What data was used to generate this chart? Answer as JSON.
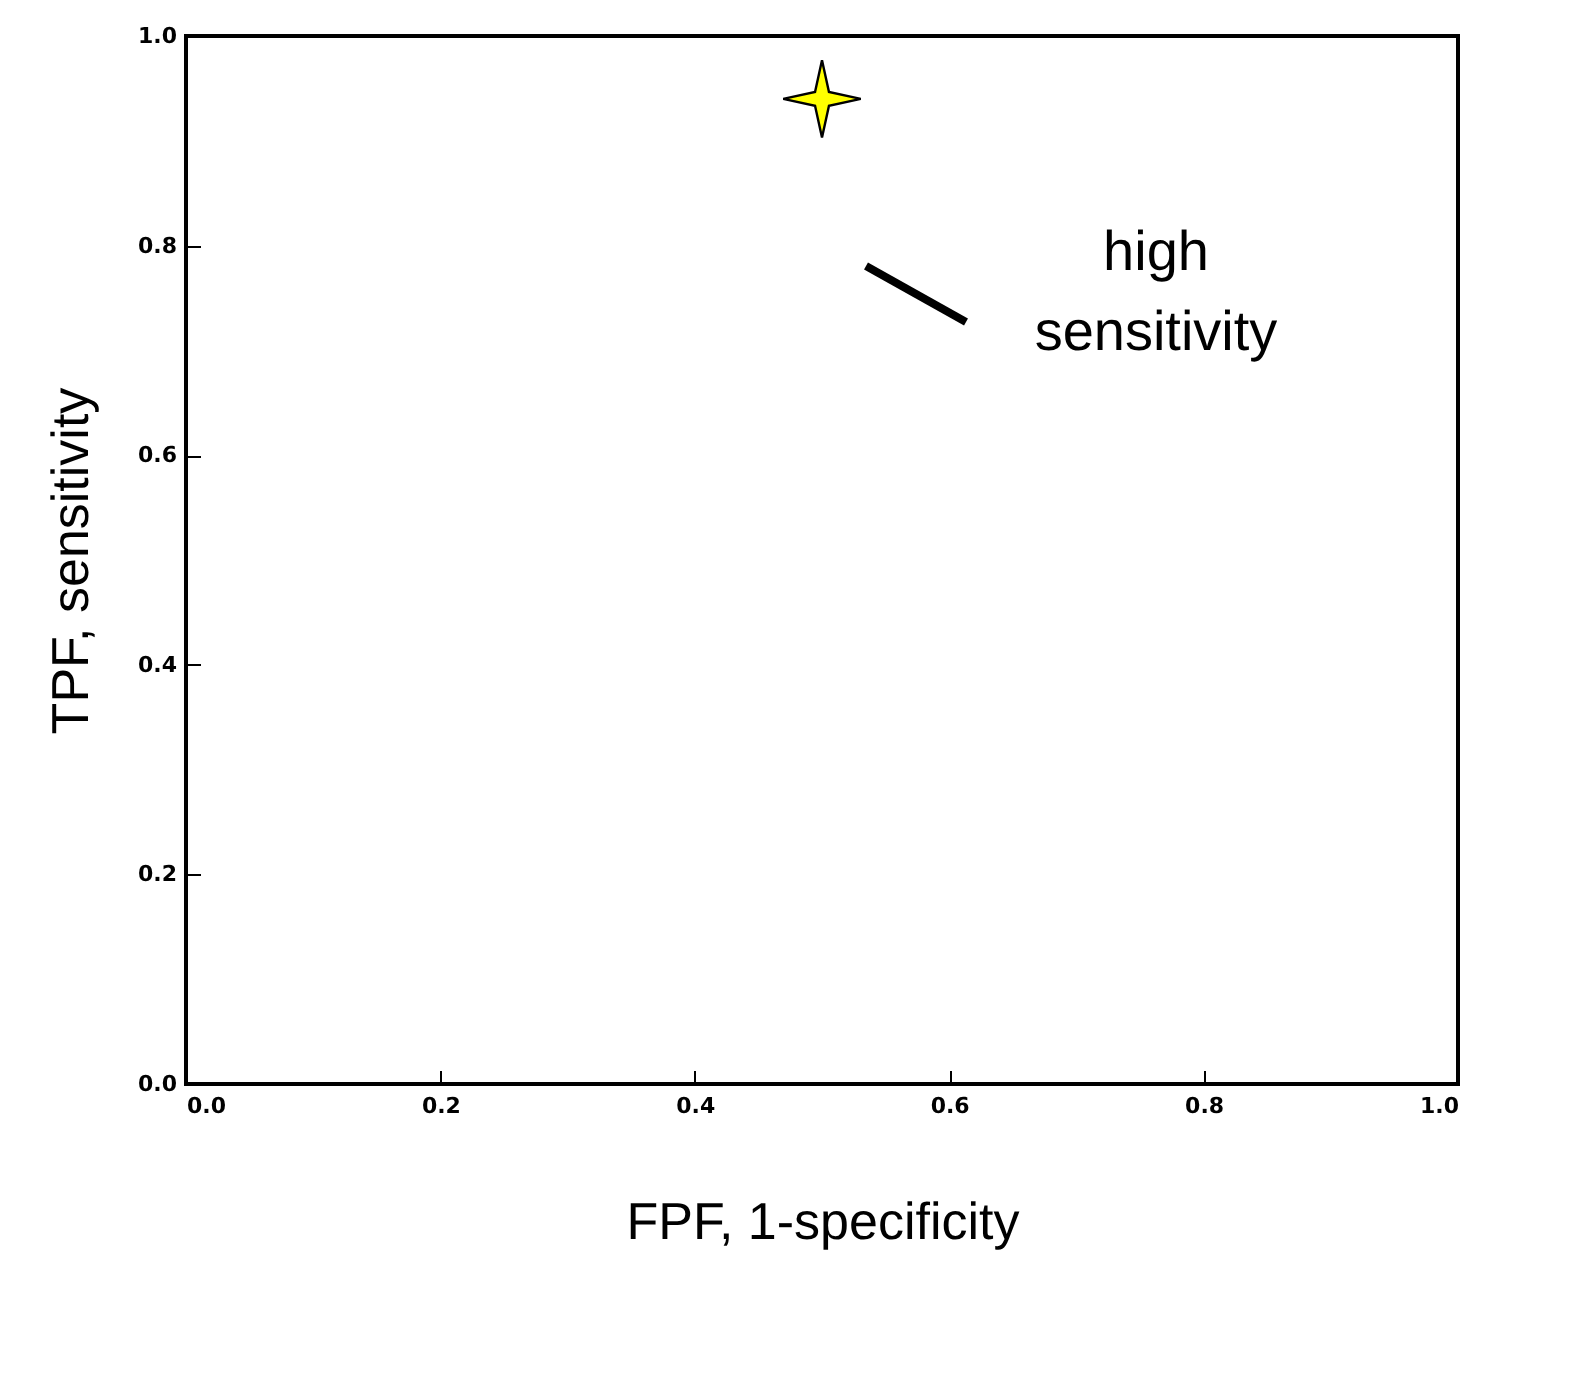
{
  "chart_data": {
    "type": "scatter",
    "xlabel": "FPF, 1-specificity",
    "ylabel": "TPF, sensitivity",
    "x": [
      0.5
    ],
    "series": [
      {
        "color": "#ffff00",
        "values": [
          0.94
        ]
      }
    ],
    "marker": "star",
    "xlim": [
      0,
      1
    ],
    "ylim": [
      0,
      1
    ],
    "xticks": [
      {
        "value": 0,
        "label": "0.0"
      },
      {
        "value": 0.2,
        "label": "0.2"
      },
      {
        "value": 0.4,
        "label": "0.4"
      },
      {
        "value": 0.6,
        "label": "0.6"
      },
      {
        "value": 0.8,
        "label": "0.8"
      },
      {
        "value": 1,
        "label": "1.0"
      }
    ],
    "yticks": [
      {
        "value": 0,
        "label": "0.0"
      },
      {
        "value": 0.2,
        "label": "0.2"
      },
      {
        "value": 0.4,
        "label": "0.4"
      },
      {
        "value": 0.6,
        "label": "0.6"
      },
      {
        "value": 0.8,
        "label": "0.8"
      },
      {
        "value": 1,
        "label": "1.0"
      }
    ],
    "annotations": [
      "high sensitivity"
    ]
  }
}
